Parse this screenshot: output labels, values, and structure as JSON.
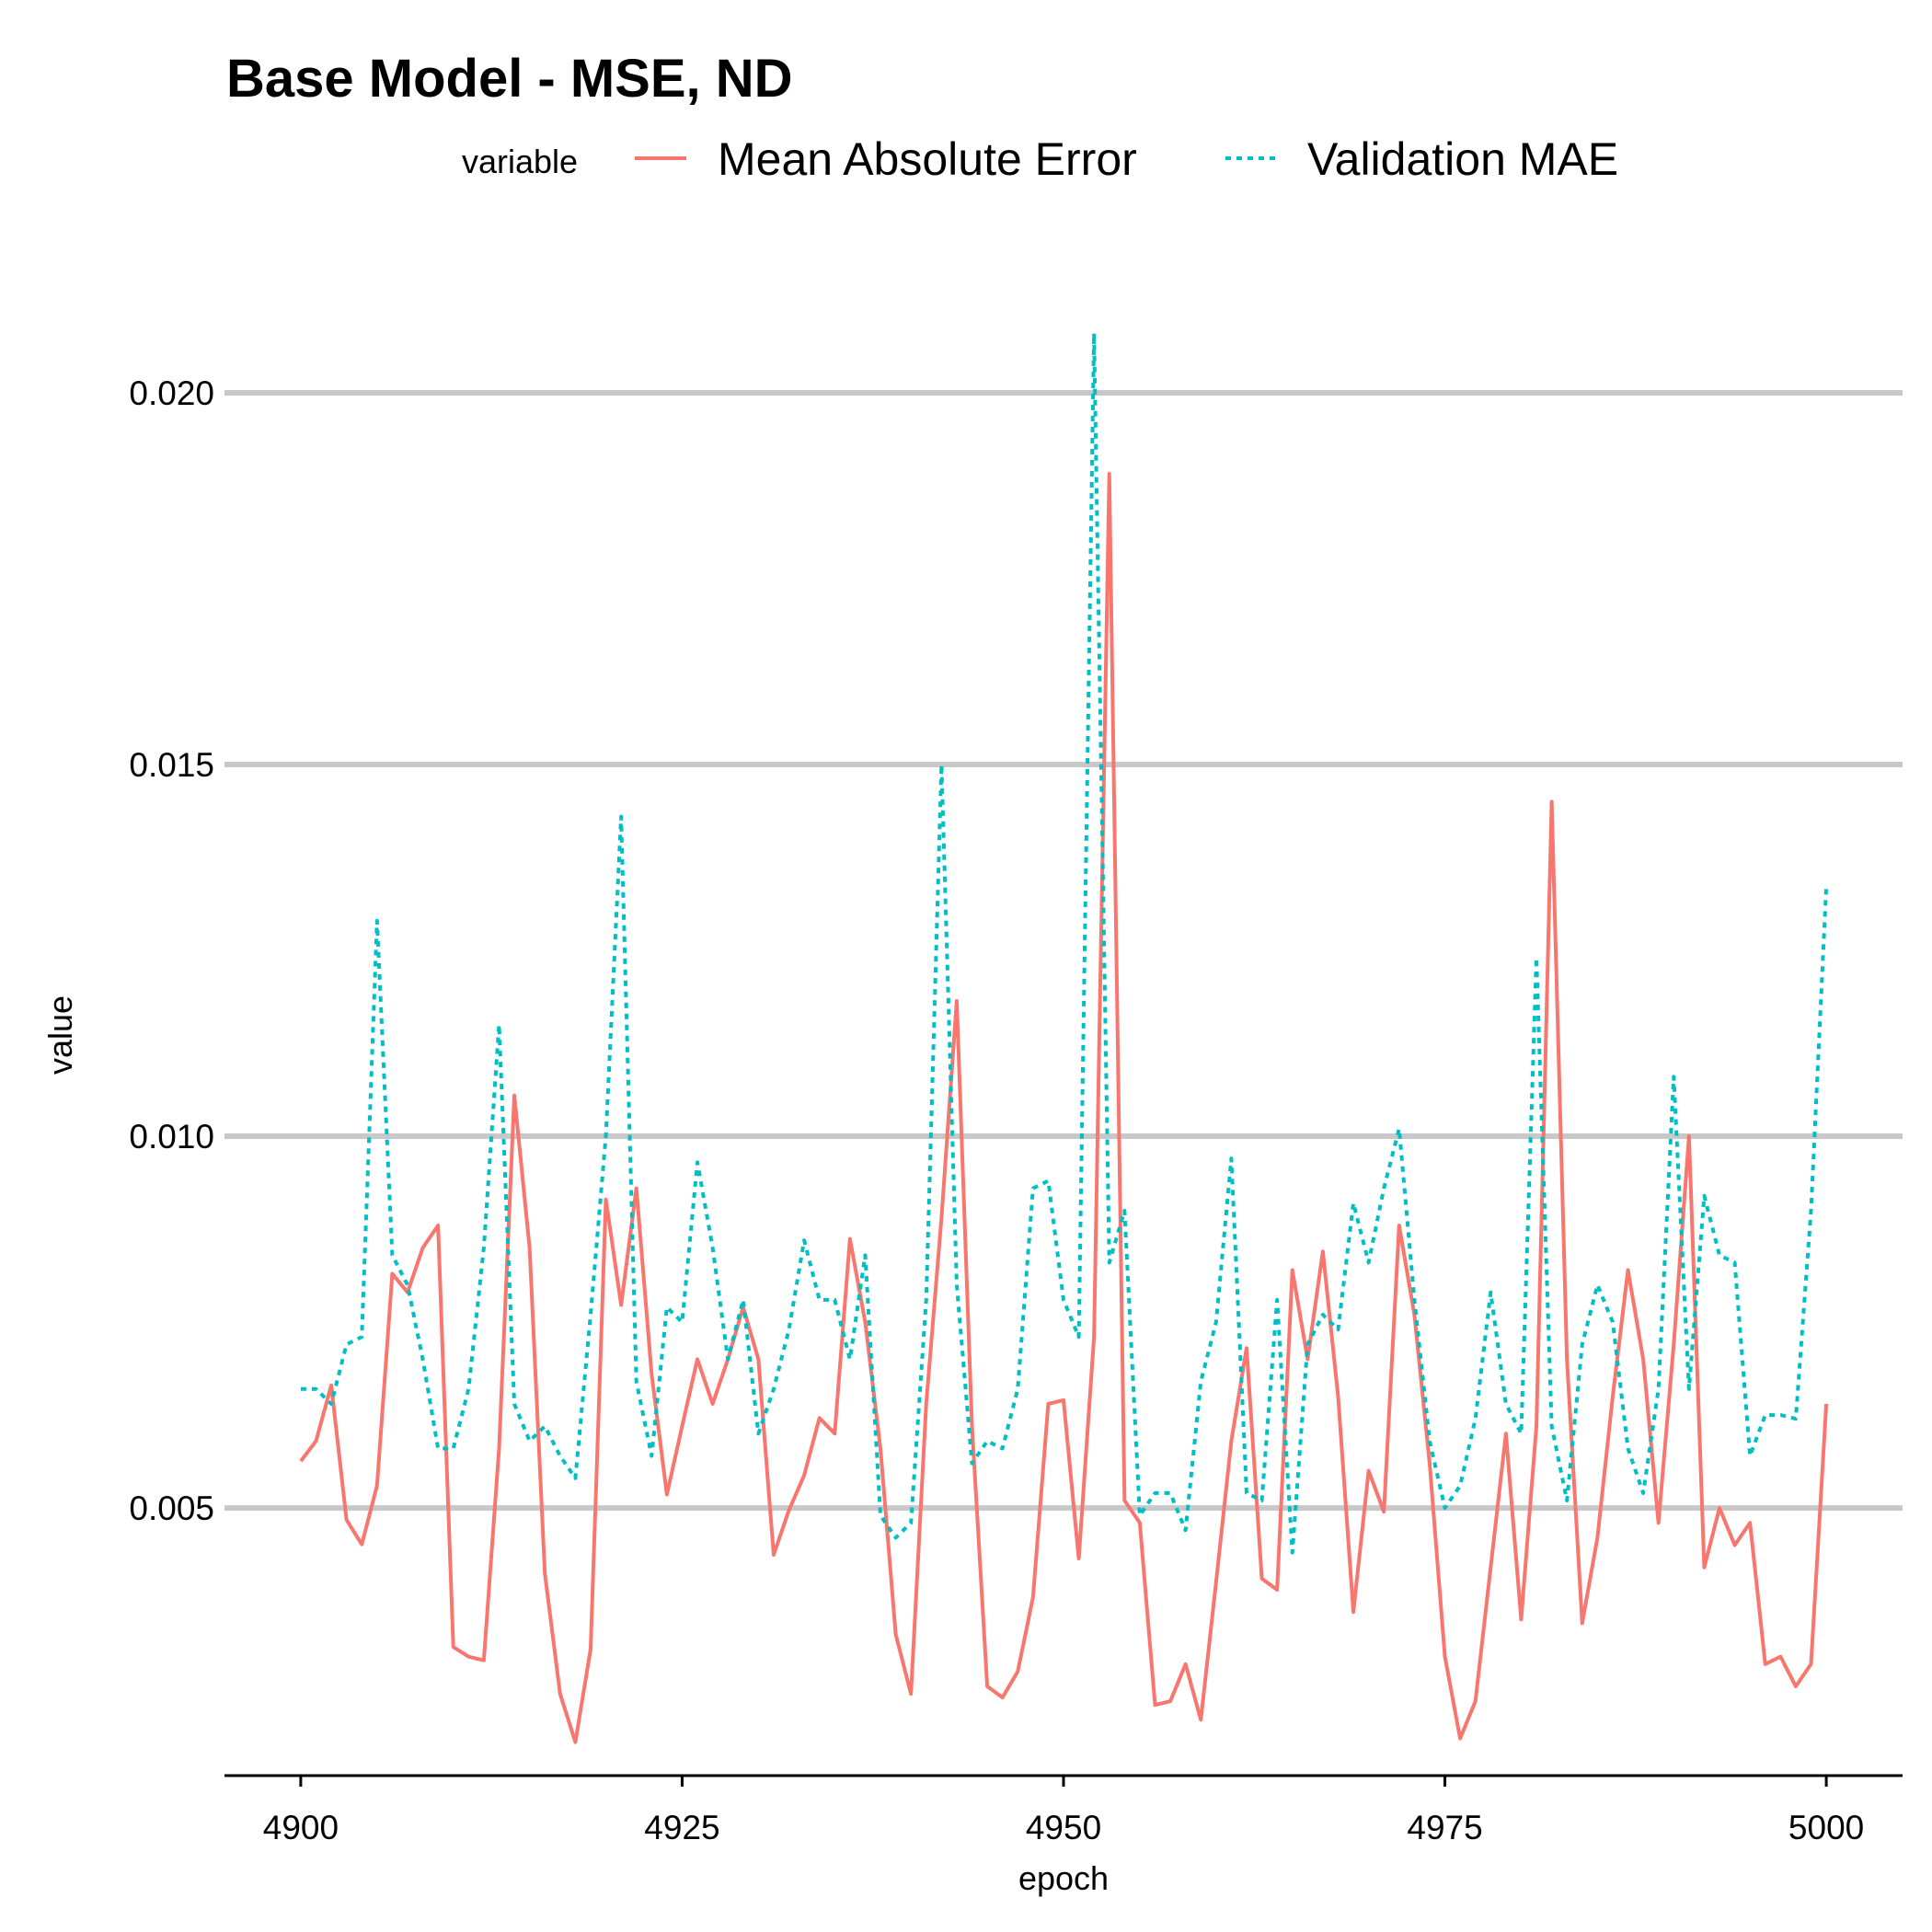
{
  "chart_data": {
    "type": "line",
    "title": "Base Model - MSE, ND",
    "xlabel": "epoch",
    "ylabel": "value",
    "xlim": [
      4895,
      5005
    ],
    "ylim": [
      0.0014,
      0.0212
    ],
    "x_ticks": [
      4900,
      4925,
      4950,
      4975,
      5000
    ],
    "x_tick_labels": [
      "4900",
      "4925",
      "4950",
      "4975",
      "5000"
    ],
    "y_ticks": [
      0.005,
      0.01,
      0.015,
      0.02
    ],
    "y_tick_labels": [
      "0.005",
      "0.010",
      "0.015",
      "0.020"
    ],
    "grid": "horizontal-major",
    "legend": {
      "title": "variable",
      "placement": "top"
    },
    "x_start": 4900,
    "x_step": 1,
    "series": [
      {
        "name": "Mean Absolute Error",
        "color": "#F8766D",
        "dash": "solid",
        "values": [
          0.00563,
          0.0059,
          0.00665,
          0.00484,
          0.00451,
          0.0053,
          0.00815,
          0.0079,
          0.0085,
          0.0088,
          0.00313,
          0.003,
          0.00295,
          0.0058,
          0.01055,
          0.0085,
          0.00412,
          0.0025,
          0.00185,
          0.0031,
          0.00915,
          0.00773,
          0.0093,
          0.0068,
          0.00518,
          0.0061,
          0.007,
          0.0064,
          0.007,
          0.0077,
          0.007,
          0.00437,
          0.00497,
          0.00544,
          0.00621,
          0.006,
          0.00862,
          0.0075,
          0.0058,
          0.0033,
          0.0025,
          0.0064,
          0.0089,
          0.01182,
          0.0061,
          0.0026,
          0.00245,
          0.0028,
          0.0038,
          0.0064,
          0.00645,
          0.00432,
          0.0073,
          0.01891,
          0.0051,
          0.0048,
          0.00235,
          0.0024,
          0.0029,
          0.00215,
          0.004,
          0.0059,
          0.00715,
          0.00405,
          0.0039,
          0.0082,
          0.007,
          0.00845,
          0.0065,
          0.0036,
          0.0055,
          0.00495,
          0.0088,
          0.0076,
          0.0056,
          0.003,
          0.0019,
          0.0024,
          0.0042,
          0.006,
          0.0035,
          0.0061,
          0.0145,
          0.007,
          0.00345,
          0.0046,
          0.0065,
          0.0082,
          0.007,
          0.0048,
          0.0072,
          0.01,
          0.0042,
          0.005,
          0.0045,
          0.0048,
          0.0029,
          0.003,
          0.0026,
          0.0029,
          0.0064
        ]
      },
      {
        "name": "Validation MAE",
        "color": "#00BFC4",
        "dash": "dotted",
        "values": [
          0.0066,
          0.0066,
          0.0064,
          0.0072,
          0.0073,
          0.0129,
          0.0084,
          0.008,
          0.007,
          0.0058,
          0.0058,
          0.0066,
          0.0085,
          0.0115,
          0.0064,
          0.0059,
          0.0061,
          0.0057,
          0.0054,
          0.0076,
          0.01,
          0.0143,
          0.0067,
          0.0057,
          0.0077,
          0.0075,
          0.00965,
          0.0085,
          0.007,
          0.0078,
          0.006,
          0.0066,
          0.0074,
          0.0086,
          0.0078,
          0.0078,
          0.007,
          0.0084,
          0.0049,
          0.0046,
          0.0048,
          0.0078,
          0.015,
          0.008,
          0.0056,
          0.0059,
          0.0058,
          0.0066,
          0.0093,
          0.0094,
          0.0078,
          0.0073,
          0.0208,
          0.0083,
          0.009,
          0.0049,
          0.0052,
          0.0052,
          0.0047,
          0.0067,
          0.0075,
          0.0097,
          0.0052,
          0.0051,
          0.0078,
          0.0044,
          0.0072,
          0.0076,
          0.0074,
          0.0091,
          0.0083,
          0.0093,
          0.0101,
          0.0078,
          0.0059,
          0.005,
          0.0053,
          0.0062,
          0.0079,
          0.0064,
          0.006,
          0.0124,
          0.0061,
          0.0051,
          0.0072,
          0.008,
          0.0075,
          0.0058,
          0.0052,
          0.0066,
          0.0108,
          0.0066,
          0.0092,
          0.0084,
          0.0083,
          0.0057,
          0.00625,
          0.00625,
          0.0062,
          0.009,
          0.01335
        ]
      }
    ]
  }
}
